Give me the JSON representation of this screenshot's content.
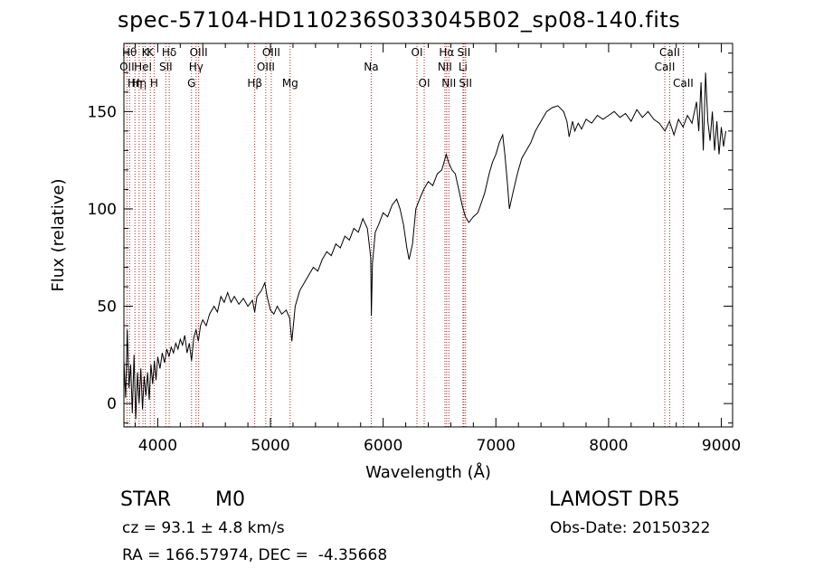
{
  "figure": {
    "title": "spec-57104-HD110236S033045B02_sp08-140.fits",
    "object_class": "STAR",
    "subclass": "M0",
    "survey": "LAMOST DR5",
    "cz_text": "cz = 93.1 ± 4.8 km/s",
    "obs_date_text": "Obs-Date: 20150322",
    "radec_text": "RA = 166.57974, DEC =  -4.35668"
  },
  "colors": {
    "line": "#000000",
    "marker": "#b22222"
  },
  "chart_data": {
    "type": "line",
    "title": "spec-57104-HD110236S033045B02_sp08-140.fits",
    "xlabel": "Wavelength (Å)",
    "ylabel": "Flux (relative)",
    "xlim": [
      3700,
      9100
    ],
    "ylim": [
      -12,
      185
    ],
    "xticks": [
      4000,
      5000,
      6000,
      7000,
      8000,
      9000
    ],
    "yticks": [
      0,
      50,
      100,
      150
    ],
    "grid": false,
    "series": [
      {
        "points": [
          [
            3700,
            22
          ],
          [
            3715,
            3
          ],
          [
            3730,
            38
          ],
          [
            3745,
            8
          ],
          [
            3760,
            20
          ],
          [
            3775,
            -5
          ],
          [
            3790,
            25
          ],
          [
            3805,
            -8
          ],
          [
            3820,
            16
          ],
          [
            3835,
            0
          ],
          [
            3850,
            18
          ],
          [
            3865,
            -3
          ],
          [
            3880,
            14
          ],
          [
            3895,
            4
          ],
          [
            3910,
            16
          ],
          [
            3925,
            2
          ],
          [
            3940,
            20
          ],
          [
            3955,
            10
          ],
          [
            3970,
            22
          ],
          [
            3985,
            12
          ],
          [
            4000,
            24
          ],
          [
            4020,
            18
          ],
          [
            4040,
            26
          ],
          [
            4060,
            21
          ],
          [
            4080,
            28
          ],
          [
            4100,
            24
          ],
          [
            4120,
            29
          ],
          [
            4140,
            26
          ],
          [
            4160,
            31
          ],
          [
            4180,
            28
          ],
          [
            4200,
            33
          ],
          [
            4220,
            30
          ],
          [
            4240,
            35
          ],
          [
            4260,
            26
          ],
          [
            4280,
            31
          ],
          [
            4300,
            22
          ],
          [
            4320,
            34
          ],
          [
            4340,
            38
          ],
          [
            4360,
            32
          ],
          [
            4380,
            40
          ],
          [
            4400,
            43
          ],
          [
            4430,
            40
          ],
          [
            4460,
            46
          ],
          [
            4500,
            50
          ],
          [
            4530,
            47
          ],
          [
            4560,
            55
          ],
          [
            4590,
            52
          ],
          [
            4620,
            57
          ],
          [
            4650,
            52
          ],
          [
            4680,
            55
          ],
          [
            4720,
            51
          ],
          [
            4760,
            54
          ],
          [
            4800,
            50
          ],
          [
            4840,
            53
          ],
          [
            4860,
            47
          ],
          [
            4880,
            55
          ],
          [
            4920,
            58
          ],
          [
            4950,
            62
          ],
          [
            4970,
            55
          ],
          [
            5000,
            48
          ],
          [
            5030,
            46
          ],
          [
            5060,
            50
          ],
          [
            5100,
            46
          ],
          [
            5140,
            48
          ],
          [
            5170,
            44
          ],
          [
            5190,
            32
          ],
          [
            5220,
            50
          ],
          [
            5260,
            58
          ],
          [
            5300,
            62
          ],
          [
            5340,
            66
          ],
          [
            5380,
            70
          ],
          [
            5420,
            68
          ],
          [
            5460,
            74
          ],
          [
            5500,
            78
          ],
          [
            5540,
            76
          ],
          [
            5580,
            82
          ],
          [
            5620,
            80
          ],
          [
            5660,
            86
          ],
          [
            5700,
            84
          ],
          [
            5740,
            90
          ],
          [
            5780,
            88
          ],
          [
            5820,
            95
          ],
          [
            5860,
            90
          ],
          [
            5890,
            75
          ],
          [
            5895,
            45
          ],
          [
            5905,
            72
          ],
          [
            5930,
            88
          ],
          [
            5960,
            92
          ],
          [
            6000,
            98
          ],
          [
            6040,
            96
          ],
          [
            6080,
            102
          ],
          [
            6120,
            105
          ],
          [
            6150,
            100
          ],
          [
            6180,
            92
          ],
          [
            6210,
            80
          ],
          [
            6230,
            74
          ],
          [
            6260,
            82
          ],
          [
            6290,
            100
          ],
          [
            6330,
            106
          ],
          [
            6360,
            110
          ],
          [
            6400,
            114
          ],
          [
            6440,
            112
          ],
          [
            6480,
            118
          ],
          [
            6520,
            120
          ],
          [
            6560,
            128
          ],
          [
            6580,
            124
          ],
          [
            6610,
            120
          ],
          [
            6640,
            118
          ],
          [
            6670,
            110
          ],
          [
            6700,
            102
          ],
          [
            6730,
            96
          ],
          [
            6760,
            93
          ],
          [
            6800,
            96
          ],
          [
            6840,
            98
          ],
          [
            6870,
            103
          ],
          [
            6900,
            108
          ],
          [
            6940,
            118
          ],
          [
            6970,
            124
          ],
          [
            7000,
            128
          ],
          [
            7030,
            134
          ],
          [
            7060,
            138
          ],
          [
            7080,
            128
          ],
          [
            7100,
            115
          ],
          [
            7120,
            100
          ],
          [
            7150,
            108
          ],
          [
            7190,
            118
          ],
          [
            7230,
            126
          ],
          [
            7270,
            130
          ],
          [
            7310,
            134
          ],
          [
            7350,
            140
          ],
          [
            7400,
            145
          ],
          [
            7450,
            150
          ],
          [
            7500,
            152
          ],
          [
            7550,
            153
          ],
          [
            7600,
            150
          ],
          [
            7630,
            145
          ],
          [
            7650,
            137
          ],
          [
            7680,
            145
          ],
          [
            7700,
            140
          ],
          [
            7730,
            144
          ],
          [
            7760,
            141
          ],
          [
            7800,
            146
          ],
          [
            7850,
            144
          ],
          [
            7900,
            148
          ],
          [
            7950,
            146
          ],
          [
            8000,
            148
          ],
          [
            8050,
            150
          ],
          [
            8100,
            147
          ],
          [
            8150,
            149
          ],
          [
            8200,
            145
          ],
          [
            8250,
            151
          ],
          [
            8300,
            147
          ],
          [
            8350,
            150
          ],
          [
            8400,
            146
          ],
          [
            8450,
            144
          ],
          [
            8500,
            140
          ],
          [
            8540,
            145
          ],
          [
            8580,
            138
          ],
          [
            8620,
            146
          ],
          [
            8660,
            142
          ],
          [
            8700,
            148
          ],
          [
            8740,
            144
          ],
          [
            8780,
            155
          ],
          [
            8800,
            140
          ],
          [
            8820,
            165
          ],
          [
            8840,
            130
          ],
          [
            8860,
            170
          ],
          [
            8880,
            145
          ],
          [
            8900,
            135
          ],
          [
            8920,
            150
          ],
          [
            8940,
            130
          ],
          [
            8960,
            145
          ],
          [
            8980,
            128
          ],
          [
            9000,
            142
          ],
          [
            9020,
            132
          ],
          [
            9040,
            140
          ]
        ]
      }
    ],
    "lines": [
      {
        "wavelength": 3727,
        "label": "OII",
        "row": 2
      },
      {
        "wavelength": 3750,
        "label": "Hθ",
        "row": 1
      },
      {
        "wavelength": 3798,
        "label": "Hη",
        "row": 3
      },
      {
        "wavelength": 3835,
        "label": "Hη",
        "row": 3
      },
      {
        "wavelength": 3869,
        "label": "HeI",
        "row": 2
      },
      {
        "wavelength": 3889,
        "label": "K",
        "row": 1
      },
      {
        "wavelength": 3934,
        "label": "K",
        "row": 1
      },
      {
        "wavelength": 3968,
        "label": "H",
        "row": 3
      },
      {
        "wavelength": 4072,
        "label": "SII",
        "row": 2
      },
      {
        "wavelength": 4102,
        "label": "Hδ",
        "row": 1
      },
      {
        "wavelength": 4300,
        "label": "G",
        "row": 3
      },
      {
        "wavelength": 4340,
        "label": "Hγ",
        "row": 2
      },
      {
        "wavelength": 4363,
        "label": "OIII",
        "row": 1
      },
      {
        "wavelength": 4861,
        "label": "Hβ",
        "row": 3
      },
      {
        "wavelength": 4959,
        "label": "OIII",
        "row": 2
      },
      {
        "wavelength": 5007,
        "label": "OIII",
        "row": 1
      },
      {
        "wavelength": 5175,
        "label": "Mg",
        "row": 3
      },
      {
        "wavelength": 5894,
        "label": "Na",
        "row": 2
      },
      {
        "wavelength": 6300,
        "label": "OI",
        "row": 1
      },
      {
        "wavelength": 6364,
        "label": "OI",
        "row": 3
      },
      {
        "wavelength": 6548,
        "label": "NII",
        "row": 2
      },
      {
        "wavelength": 6563,
        "label": "Hα",
        "row": 1
      },
      {
        "wavelength": 6583,
        "label": "NII",
        "row": 3
      },
      {
        "wavelength": 6708,
        "label": "Li",
        "row": 2
      },
      {
        "wavelength": 6716,
        "label": "SII",
        "row": 1
      },
      {
        "wavelength": 6731,
        "label": "SII",
        "row": 3
      },
      {
        "wavelength": 8498,
        "label": "CaII",
        "row": 2
      },
      {
        "wavelength": 8542,
        "label": "CaII",
        "row": 1
      },
      {
        "wavelength": 8662,
        "label": "CaII",
        "row": 3
      }
    ]
  }
}
